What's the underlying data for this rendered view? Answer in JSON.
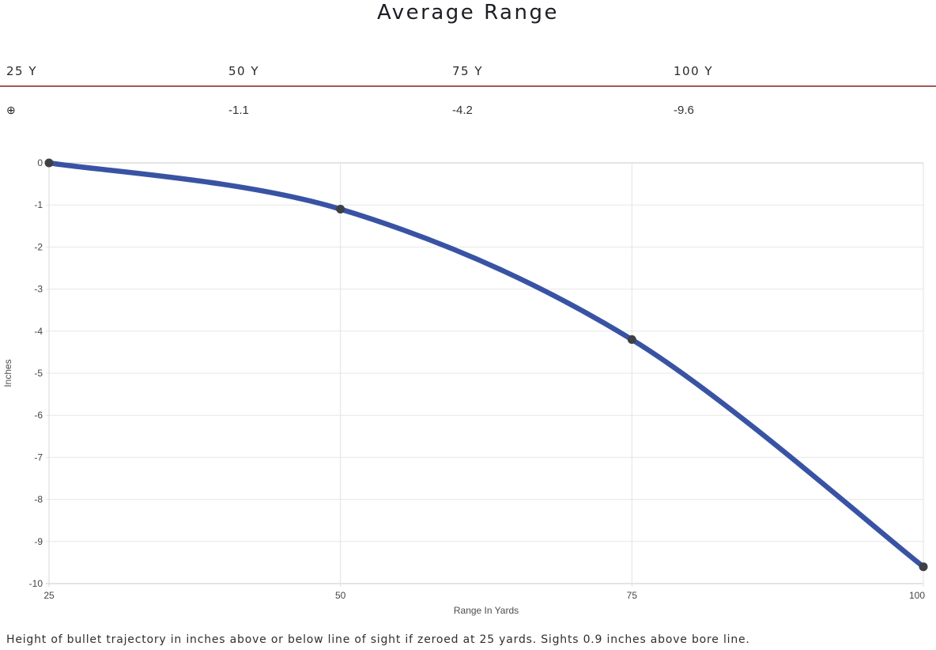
{
  "title": "Average Range",
  "range_table": {
    "headers": [
      "25 Y",
      "50 Y",
      "75 Y",
      "100 Y"
    ],
    "values": [
      "⊕",
      "-1.1",
      "-4.2",
      "-9.6"
    ],
    "divider_color": "#a05a52"
  },
  "chart_data": {
    "type": "line",
    "x": [
      25,
      50,
      75,
      100
    ],
    "y": [
      0,
      -1.1,
      -4.2,
      -9.6
    ],
    "xticks": [
      25,
      50,
      75,
      100
    ],
    "yticks": [
      0,
      -1,
      -2,
      -3,
      -4,
      -5,
      -6,
      -7,
      -8,
      -9,
      -10
    ],
    "xlim": [
      25,
      100
    ],
    "ylim": [
      -10,
      0
    ],
    "xlabel": "Range In Yards",
    "ylabel": "Inches",
    "title": "",
    "legend": "none",
    "grid": true,
    "curve": "smooth",
    "line_color": "#3953a4",
    "point_color": "#3d4147",
    "gridline_color": "#e7e7e7",
    "baseline_color": "#c9c9c9"
  },
  "footnote": "Height of bullet trajectory in inches above or below line of sight if zeroed at 25 yards. Sights 0.9 inches above bore line."
}
